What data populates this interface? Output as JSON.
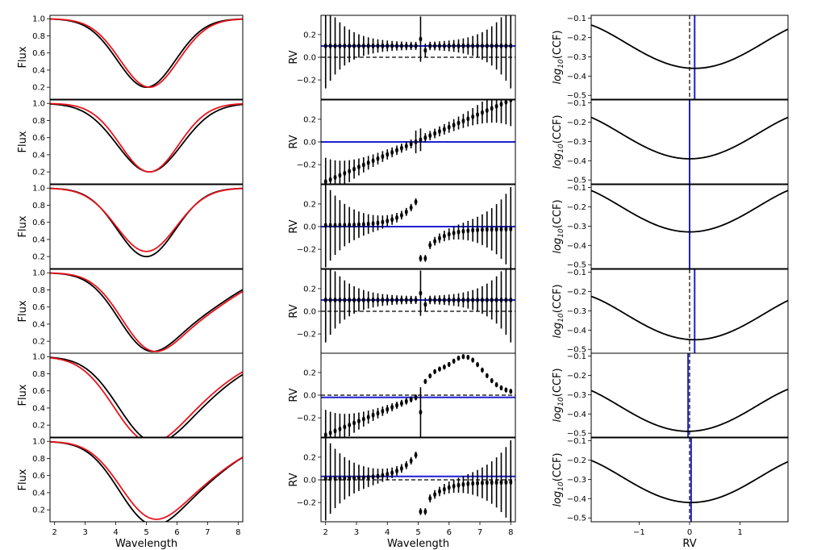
{
  "chart_data": {
    "type": "line",
    "description_grid": "6 rows x 3 columns",
    "columns": [
      {
        "name": "flux",
        "ylabel": "Flux",
        "xlabel": "Wavelength",
        "xlim": [
          1.85,
          8.15
        ],
        "ylim": [
          0.06,
          1.04
        ],
        "xticks": [
          2,
          3,
          4,
          5,
          6,
          7,
          8
        ],
        "yticks": [
          0.2,
          0.4,
          0.6,
          0.8,
          1.0
        ],
        "ytick_labels": [
          "0.2",
          "0.4",
          "0.6",
          "0.8",
          "1.0"
        ],
        "series_colors": {
          "observed": "#000000",
          "model": "#e8131b"
        },
        "rows": [
          {
            "black": {
              "center": 5.0,
              "depth": 0.8,
              "width": 0.95
            },
            "red": {
              "center": 5.1,
              "depth": 0.8,
              "width": 0.95
            }
          },
          {
            "black": {
              "center": 5.1,
              "depth": 0.8,
              "width": 1.05
            },
            "red": {
              "center": 5.1,
              "depth": 0.8,
              "width": 0.95
            }
          },
          {
            "black": {
              "center": 5.0,
              "depth": 0.8,
              "width": 0.95
            },
            "red": {
              "center": 5.0,
              "depth": 0.74,
              "width": 0.98
            }
          },
          {
            "black": {
              "shape": "blend"
            },
            "red": {
              "shape": "blend",
              "shift": 0.1
            }
          },
          {
            "black": {
              "shape": "blend2"
            },
            "red": {
              "shape": "blend2",
              "shift": -0.15
            }
          },
          {
            "black": {
              "shape": "blend3"
            },
            "red": {
              "shape": "blend3",
              "shift": 0.05,
              "depth_scale": 0.93
            }
          }
        ]
      },
      {
        "name": "rv",
        "ylabel": "RV",
        "xlabel": "Wavelength",
        "xlim": [
          1.85,
          8.15
        ],
        "ylim": [
          -0.37,
          0.37
        ],
        "xticks": [
          2,
          3,
          4,
          5,
          6,
          7,
          8
        ],
        "yticks": [
          -0.2,
          0.0,
          0.2
        ],
        "ytick_labels": [
          "−0.2",
          "0.0",
          "0.2"
        ],
        "rv_line_color": "#1f1fd1",
        "rows": [
          {
            "rv_line": 0.1,
            "pattern": "flat",
            "level": 0.1
          },
          {
            "rv_line": 0.0,
            "pattern": "ramp"
          },
          {
            "rv_line": 0.0,
            "pattern": "split"
          },
          {
            "rv_line": 0.1,
            "pattern": "flat",
            "level": 0.1
          },
          {
            "rv_line": -0.02,
            "pattern": "ramp_bump"
          },
          {
            "rv_line": 0.03,
            "pattern": "split"
          }
        ]
      },
      {
        "name": "ccf",
        "ylabel": "log10(CCF)",
        "ylabel_base": "log",
        "ylabel_sub": "10",
        "ylabel_rest": "(CCF)",
        "xlabel": "RV",
        "xlim": [
          -1.95,
          1.95
        ],
        "ylim": [
          -0.52,
          -0.085
        ],
        "xticks": [
          -1,
          0,
          1
        ],
        "xtick_labels": [
          "−1",
          "0",
          "1"
        ],
        "yticks": [
          -0.1,
          -0.2,
          -0.3,
          -0.4,
          -0.5
        ],
        "ytick_labels": [
          "−0.1",
          "−0.2",
          "−0.3",
          "−0.4",
          "−0.5"
        ],
        "rows": [
          {
            "min_x": 0.1,
            "min_y": -0.36,
            "rv_line": 0.1
          },
          {
            "min_x": 0.0,
            "min_y": -0.39,
            "rv_line": 0.0
          },
          {
            "min_x": 0.0,
            "min_y": -0.33,
            "rv_line": 0.0
          },
          {
            "min_x": 0.1,
            "min_y": -0.45,
            "rv_line": 0.1
          },
          {
            "min_x": -0.03,
            "min_y": -0.49,
            "rv_line": -0.03
          },
          {
            "min_x": 0.03,
            "min_y": -0.42,
            "rv_line": 0.03
          }
        ]
      }
    ]
  }
}
